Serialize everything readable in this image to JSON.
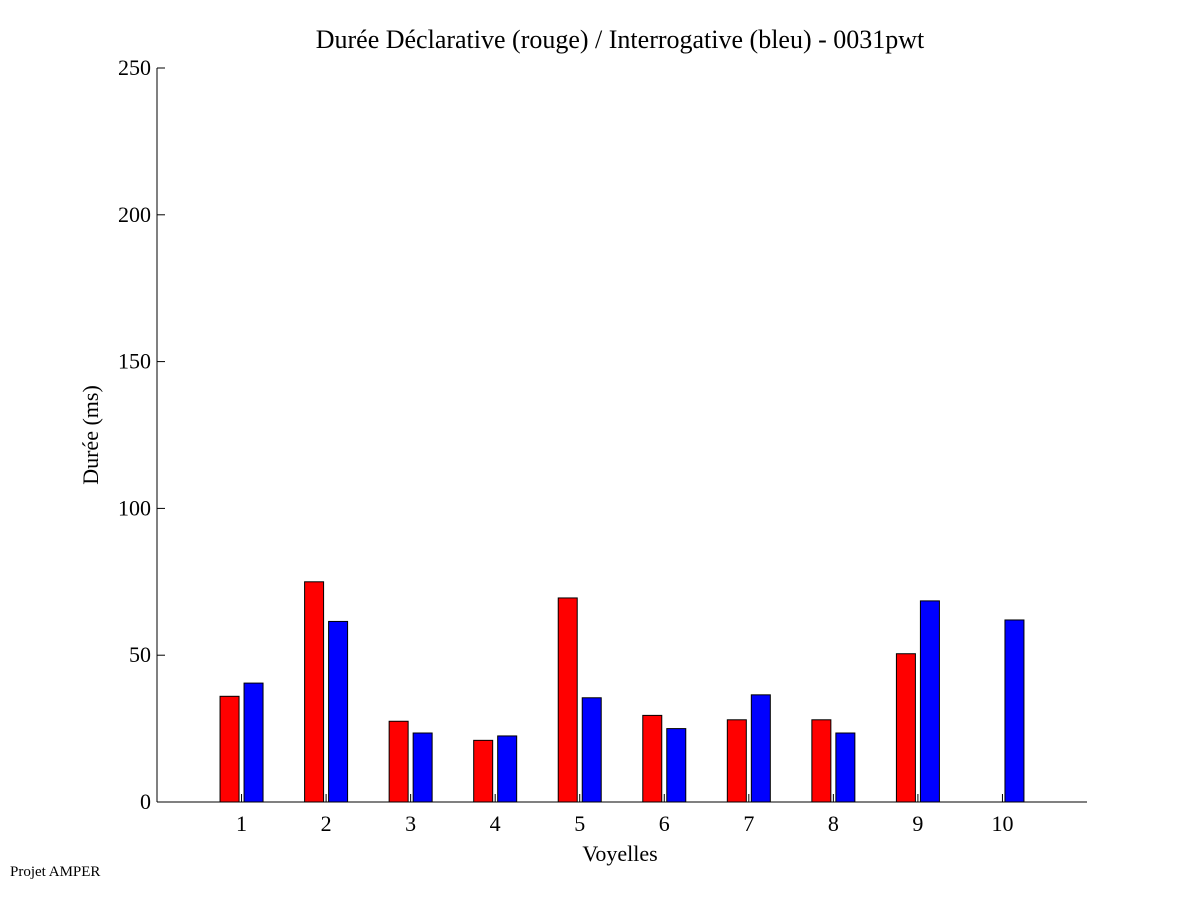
{
  "footer": "Projet AMPER",
  "chart_data": {
    "type": "bar",
    "title": "Durée Déclarative (rouge) / Interrogative (bleu) - 0031pwt",
    "xlabel": "Voyelles",
    "ylabel": "Durée (ms)",
    "ylim": [
      0,
      250
    ],
    "xlim": [
      0,
      11
    ],
    "yticks": [
      0,
      50,
      100,
      150,
      200,
      250
    ],
    "categories": [
      "1",
      "2",
      "3",
      "4",
      "5",
      "6",
      "7",
      "8",
      "9",
      "10"
    ],
    "series": [
      {
        "color": "#ff0000",
        "values": [
          36,
          75,
          27.5,
          21,
          69.5,
          29.5,
          28,
          28,
          50.5,
          0
        ]
      },
      {
        "color": "#0000ff",
        "values": [
          40.5,
          61.5,
          23.5,
          22.5,
          35.5,
          25,
          36.5,
          23.5,
          68.5,
          62
        ]
      }
    ],
    "grid": false,
    "legend": "none"
  }
}
